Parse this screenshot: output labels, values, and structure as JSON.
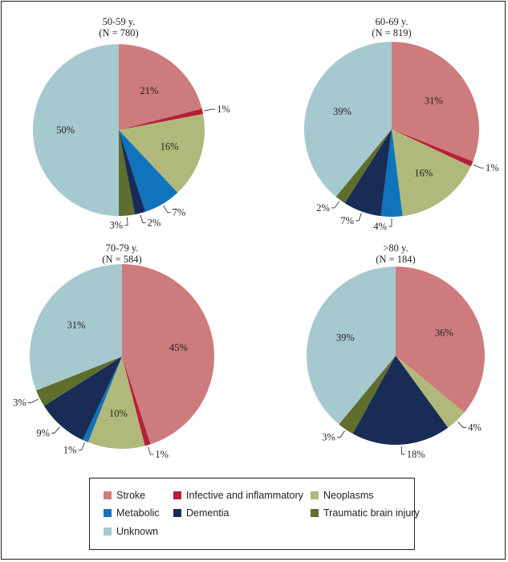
{
  "colors": {
    "Stroke": "#cd7b7c",
    "Infective and inflammatory": "#b51f3a",
    "Neoplasms": "#b0b97b",
    "Metabolic": "#0f74bb",
    "Dementia": "#182c55",
    "Traumatic brain injury": "#5f6e2c",
    "Unknown": "#a5c9cf"
  },
  "legend": [
    "Stroke",
    "Infective and inflammatory",
    "Neoplasms",
    "Metabolic",
    "Dementia",
    "Traumatic brain injury",
    "Unknown"
  ],
  "chart_data": [
    {
      "type": "pie",
      "title": "50-59 y.",
      "subtitle": "(N = 780)",
      "categories": [
        "Stroke",
        "Infective and inflammatory",
        "Neoplasms",
        "Metabolic",
        "Dementia",
        "Traumatic brain injury",
        "Unknown"
      ],
      "values": [
        21,
        1,
        16,
        7,
        2,
        3,
        50
      ],
      "labels": [
        "21%",
        "1%",
        "16%",
        "7%",
        "2%",
        "3%",
        "50%"
      ]
    },
    {
      "type": "pie",
      "title": "60-69 y.",
      "subtitle": "(N = 819)",
      "categories": [
        "Stroke",
        "Infective and inflammatory",
        "Neoplasms",
        "Metabolic",
        "Dementia",
        "Traumatic brain injury",
        "Unknown"
      ],
      "values": [
        31,
        1,
        16,
        4,
        7,
        2,
        39
      ],
      "labels": [
        "31%",
        "1%",
        "16%",
        "4%",
        "7%",
        "2%",
        "39%"
      ]
    },
    {
      "type": "pie",
      "title": "70-79 y.",
      "subtitle": "(N = 584)",
      "categories": [
        "Stroke",
        "Infective and inflammatory",
        "Neoplasms",
        "Metabolic",
        "Dementia",
        "Traumatic brain injury",
        "Unknown"
      ],
      "values": [
        45,
        1,
        10,
        1,
        9,
        3,
        31
      ],
      "labels": [
        "45%",
        "1%",
        "10%",
        "1%",
        "9%",
        "3%",
        "31%"
      ]
    },
    {
      "type": "pie",
      "title": ">80 y.",
      "subtitle": "(N = 184)",
      "categories": [
        "Stroke",
        "Neoplasms",
        "Dementia",
        "Traumatic brain injury",
        "Unknown"
      ],
      "values": [
        36,
        4,
        18,
        3,
        39
      ],
      "labels": [
        "36%",
        "4%",
        "18%",
        "3%",
        "39%"
      ]
    }
  ]
}
